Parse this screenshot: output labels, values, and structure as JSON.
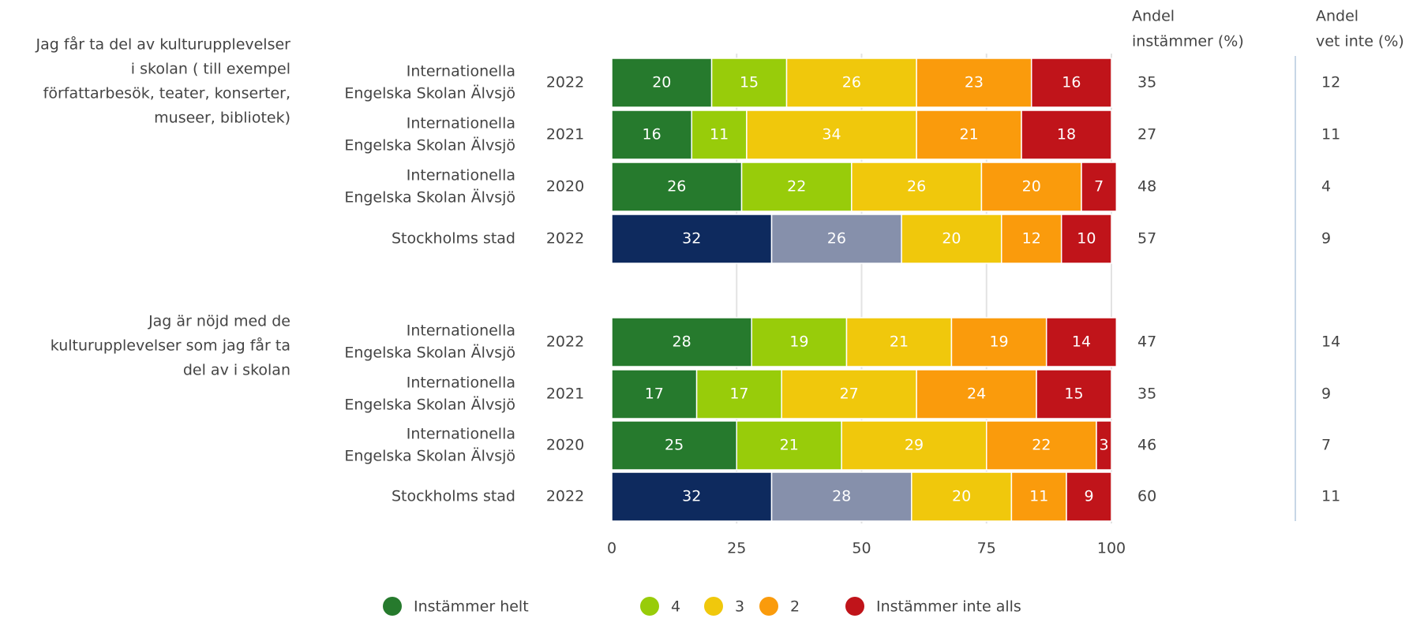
{
  "chart_data": {
    "type": "bar",
    "orientation": "horizontal",
    "stacked": true,
    "groups": [
      [
        "Jag får ta del av kulturupplevelser",
        "i skolan ( till exempel",
        "författarbesök, teater, konserter,",
        "museer, bibliotek)"
      ],
      [
        "Jag är nöjd med de",
        "kulturupplevelser som jag får ta",
        "del av i skolan"
      ]
    ],
    "categories": [
      [
        "Internationella",
        "Engelska Skolan Älvsjö"
      ],
      [
        "Internationella",
        "Engelska Skolan Älvsjö"
      ],
      [
        "Internationella",
        "Engelska Skolan Älvsjö"
      ],
      [
        "Stockholms stad"
      ],
      [
        "Internationella",
        "Engelska Skolan Älvsjö"
      ],
      [
        "Internationella",
        "Engelska Skolan Älvsjö"
      ],
      [
        "Internationella",
        "Engelska Skolan Älvsjö"
      ],
      [
        "Stockholms stad"
      ]
    ],
    "years": [
      2022,
      2021,
      2020,
      2022,
      2022,
      2021,
      2020,
      2022
    ],
    "series": [
      {
        "name": "Instämmer helt",
        "color": "#267a2d",
        "colors": [
          "#267a2d",
          "#267a2d",
          "#267a2d",
          "#0e2a5e",
          "#267a2d",
          "#267a2d",
          "#267a2d",
          "#0e2a5e"
        ],
        "values": [
          20,
          16,
          26,
          32,
          28,
          17,
          25,
          32
        ]
      },
      {
        "name": "4",
        "color": "#98cc0a",
        "colors": [
          "#98cc0a",
          "#98cc0a",
          "#98cc0a",
          "#8690ab",
          "#98cc0a",
          "#98cc0a",
          "#98cc0a",
          "#8690ab"
        ],
        "values": [
          15,
          11,
          22,
          26,
          19,
          17,
          21,
          28
        ]
      },
      {
        "name": "3",
        "color": "#f0c80c",
        "values": [
          26,
          34,
          26,
          20,
          21,
          27,
          29,
          20
        ]
      },
      {
        "name": "2",
        "color": "#fa9b0c",
        "values": [
          23,
          21,
          20,
          12,
          19,
          24,
          22,
          11
        ]
      },
      {
        "name": "Instämmer inte alls",
        "color": "#c0141a",
        "values": [
          16,
          18,
          7,
          10,
          14,
          15,
          3,
          9
        ]
      }
    ],
    "columns": [
      {
        "title": [
          "Andel",
          "instämmer (%)"
        ],
        "values": [
          35,
          27,
          48,
          57,
          47,
          35,
          46,
          60
        ]
      },
      {
        "title": [
          "Andel",
          "vet inte (%)"
        ],
        "values": [
          12,
          11,
          4,
          9,
          14,
          9,
          7,
          11
        ]
      }
    ],
    "xlim": [
      0,
      100
    ],
    "xticks": [
      0,
      25,
      50,
      75,
      100
    ],
    "grid": true
  }
}
